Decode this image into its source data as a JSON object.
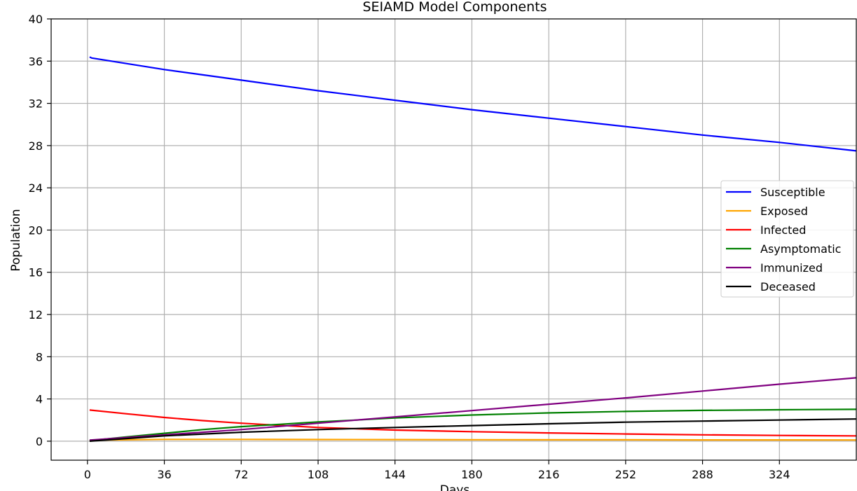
{
  "chart_data": {
    "type": "line",
    "title": "SEIAMD Model Components",
    "xlabel": "Days",
    "ylabel": "Population",
    "xlim": [
      -17,
      360
    ],
    "ylim": [
      -1.8,
      40
    ],
    "xticks": [
      0,
      36,
      72,
      108,
      144,
      180,
      216,
      252,
      288,
      324
    ],
    "yticks": [
      0,
      4,
      8,
      12,
      16,
      20,
      24,
      28,
      32,
      36,
      40
    ],
    "grid": true,
    "legend_position": "right",
    "series": [
      {
        "name": "Susceptible",
        "color": "#0000ff",
        "points": [
          [
            1,
            36.4
          ],
          [
            2,
            36.3
          ],
          [
            36,
            35.2
          ],
          [
            72,
            34.2
          ],
          [
            108,
            33.2
          ],
          [
            144,
            32.3
          ],
          [
            180,
            31.4
          ],
          [
            216,
            30.6
          ],
          [
            252,
            29.8
          ],
          [
            288,
            29.0
          ],
          [
            324,
            28.3
          ],
          [
            360,
            27.5
          ]
        ]
      },
      {
        "name": "Exposed",
        "color": "#ffa500",
        "points": [
          [
            1,
            0.05
          ],
          [
            10,
            0.12
          ],
          [
            36,
            0.17
          ],
          [
            72,
            0.17
          ],
          [
            108,
            0.16
          ],
          [
            144,
            0.15
          ],
          [
            180,
            0.14
          ],
          [
            216,
            0.13
          ],
          [
            252,
            0.13
          ],
          [
            288,
            0.12
          ],
          [
            324,
            0.12
          ],
          [
            360,
            0.11
          ]
        ]
      },
      {
        "name": "Infected",
        "color": "#ff0000",
        "points": [
          [
            1,
            2.95
          ],
          [
            18,
            2.6
          ],
          [
            36,
            2.25
          ],
          [
            54,
            1.95
          ],
          [
            72,
            1.7
          ],
          [
            90,
            1.5
          ],
          [
            108,
            1.3
          ],
          [
            144,
            1.05
          ],
          [
            180,
            0.9
          ],
          [
            216,
            0.78
          ],
          [
            252,
            0.68
          ],
          [
            288,
            0.6
          ],
          [
            324,
            0.54
          ],
          [
            360,
            0.5
          ]
        ]
      },
      {
        "name": "Asymptomatic",
        "color": "#008000",
        "points": [
          [
            1,
            0.05
          ],
          [
            18,
            0.4
          ],
          [
            36,
            0.75
          ],
          [
            54,
            1.1
          ],
          [
            72,
            1.38
          ],
          [
            90,
            1.6
          ],
          [
            108,
            1.82
          ],
          [
            126,
            2.0
          ],
          [
            144,
            2.2
          ],
          [
            180,
            2.48
          ],
          [
            216,
            2.68
          ],
          [
            252,
            2.82
          ],
          [
            288,
            2.92
          ],
          [
            324,
            2.98
          ],
          [
            360,
            3.02
          ]
        ]
      },
      {
        "name": "Immunized",
        "color": "#800080",
        "points": [
          [
            1,
            0.1
          ],
          [
            36,
            0.6
          ],
          [
            72,
            1.1
          ],
          [
            108,
            1.7
          ],
          [
            144,
            2.3
          ],
          [
            180,
            2.9
          ],
          [
            216,
            3.5
          ],
          [
            252,
            4.1
          ],
          [
            288,
            4.75
          ],
          [
            324,
            5.4
          ],
          [
            360,
            6.0
          ]
        ]
      },
      {
        "name": "Deceased",
        "color": "#000000",
        "points": [
          [
            1,
            0.0
          ],
          [
            36,
            0.5
          ],
          [
            72,
            0.85
          ],
          [
            108,
            1.1
          ],
          [
            144,
            1.3
          ],
          [
            180,
            1.48
          ],
          [
            216,
            1.65
          ],
          [
            252,
            1.8
          ],
          [
            288,
            1.9
          ],
          [
            324,
            2.0
          ],
          [
            360,
            2.1
          ]
        ]
      }
    ]
  }
}
